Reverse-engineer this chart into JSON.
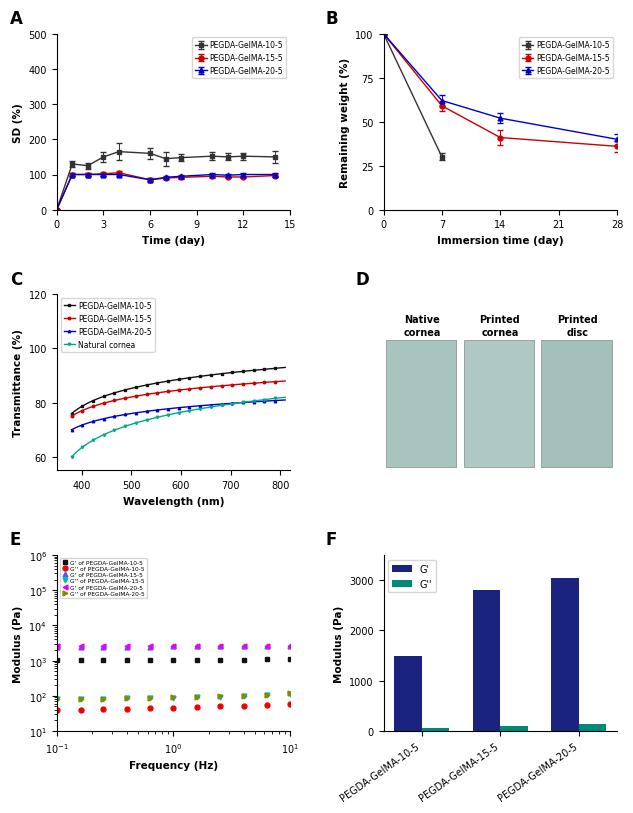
{
  "panel_A": {
    "xlabel": "Time (day)",
    "ylabel": "SD (%)",
    "xlim": [
      0,
      15
    ],
    "ylim": [
      0,
      500
    ],
    "yticks": [
      0,
      100,
      200,
      300,
      400,
      500
    ],
    "xticks": [
      0,
      3,
      6,
      9,
      12,
      15
    ],
    "series": [
      {
        "label": "PEGDA-GelMA-10-5",
        "color": "#333333",
        "marker": "s",
        "x": [
          0,
          1,
          2,
          3,
          4,
          6,
          7,
          8,
          10,
          11,
          12,
          14
        ],
        "y": [
          0,
          130,
          125,
          150,
          165,
          160,
          145,
          148,
          152,
          150,
          152,
          150
        ],
        "yerr": [
          0,
          8,
          8,
          15,
          25,
          15,
          20,
          10,
          12,
          10,
          10,
          18
        ]
      },
      {
        "label": "PEGDA-GelMA-15-5",
        "color": "#cc0000",
        "marker": "o",
        "x": [
          0,
          1,
          2,
          3,
          4,
          6,
          7,
          8,
          10,
          11,
          12,
          14
        ],
        "y": [
          0,
          100,
          100,
          102,
          105,
          85,
          90,
          92,
          95,
          93,
          93,
          97
        ],
        "yerr": [
          0,
          4,
          4,
          6,
          6,
          4,
          4,
          4,
          4,
          4,
          4,
          4
        ]
      },
      {
        "label": "PEGDA-GelMA-20-5",
        "color": "#0000cc",
        "marker": "^",
        "x": [
          0,
          1,
          2,
          3,
          4,
          6,
          7,
          8,
          10,
          11,
          12,
          14
        ],
        "y": [
          0,
          100,
          100,
          100,
          100,
          85,
          92,
          95,
          100,
          98,
          100,
          100
        ],
        "yerr": [
          0,
          4,
          4,
          4,
          4,
          4,
          4,
          4,
          4,
          4,
          4,
          4
        ]
      }
    ]
  },
  "panel_B": {
    "xlabel": "Immersion time (day)",
    "ylabel": "Remaining weight (%)",
    "xlim": [
      0,
      28
    ],
    "ylim": [
      0,
      100
    ],
    "yticks": [
      0,
      25,
      50,
      75,
      100
    ],
    "xticks": [
      0,
      7,
      14,
      21,
      28
    ],
    "series": [
      {
        "label": "PEGDA-GelMA-10-5",
        "color": "#333333",
        "marker": "s",
        "x": [
          0,
          7
        ],
        "y": [
          100,
          30
        ],
        "yerr": [
          0,
          2
        ]
      },
      {
        "label": "PEGDA-GelMA-15-5",
        "color": "#cc0000",
        "marker": "o",
        "x": [
          0,
          7,
          14,
          28
        ],
        "y": [
          100,
          59,
          41,
          36
        ],
        "yerr": [
          0,
          3,
          4,
          3
        ]
      },
      {
        "label": "PEGDA-GelMA-20-5",
        "color": "#0000cc",
        "marker": "^",
        "x": [
          0,
          7,
          14,
          28
        ],
        "y": [
          100,
          62,
          52,
          40
        ],
        "yerr": [
          0,
          3,
          3,
          3
        ]
      }
    ]
  },
  "panel_C": {
    "xlabel": "Wavelength (nm)",
    "ylabel": "Transmittance (%)",
    "xlim": [
      350,
      820
    ],
    "ylim": [
      55,
      120
    ],
    "yticks": [
      60,
      80,
      100,
      120
    ],
    "xticks": [
      400,
      500,
      600,
      700,
      800
    ],
    "series": [
      {
        "label": "PEGDA-GelMA-10-5",
        "color": "#111111",
        "marker": "s",
        "x_start": 380,
        "x_end": 810,
        "y_start": 76,
        "y_end": 93
      },
      {
        "label": "PEGDA-GelMA-15-5",
        "color": "#cc0000",
        "marker": "o",
        "x_start": 380,
        "x_end": 810,
        "y_start": 75,
        "y_end": 88
      },
      {
        "label": "PEGDA-GelMA-20-5",
        "color": "#0000cc",
        "marker": "^",
        "x_start": 380,
        "x_end": 810,
        "y_start": 70,
        "y_end": 81
      },
      {
        "label": "Natural cornea",
        "color": "#00aa88",
        "marker": "v",
        "x_start": 380,
        "x_end": 810,
        "y_start": 60,
        "y_end": 82
      }
    ]
  },
  "panel_D": {
    "labels": [
      "Native\ncornea",
      "Printed\ncornea",
      "Printed\ndisc"
    ],
    "bg_colors": [
      "#b8cfc8",
      "#b8cec8",
      "#b0c8c4"
    ],
    "panel_color": "#c8d8d4"
  },
  "panel_E": {
    "xlabel": "Frequency (Hz)",
    "ylabel": "Modulus (Pa)",
    "xlim": [
      0.1,
      10
    ],
    "ylim": [
      10,
      1000000
    ],
    "series": [
      {
        "label": "G' of PEGDA-GelMA-10-5",
        "color": "#111111",
        "marker": "s",
        "x": [
          0.1,
          0.16,
          0.25,
          0.4,
          0.63,
          1.0,
          1.6,
          2.5,
          4.0,
          6.3,
          10.0
        ],
        "y": [
          1050,
          1050,
          1050,
          1060,
          1060,
          1060,
          1065,
          1070,
          1075,
          1080,
          1090
        ]
      },
      {
        "label": "G'' of PEGDA-GelMA-10-5",
        "color": "#ee0000",
        "marker": "o",
        "x": [
          0.1,
          0.16,
          0.25,
          0.4,
          0.63,
          1.0,
          1.6,
          2.5,
          4.0,
          6.3,
          10.0
        ],
        "y": [
          40,
          40,
          42,
          43,
          44,
          46,
          48,
          50,
          52,
          55,
          60
        ]
      },
      {
        "label": "G' of PEGDA-GelMA-15-5",
        "color": "#5555ff",
        "marker": "^",
        "x": [
          0.1,
          0.16,
          0.25,
          0.4,
          0.63,
          1.0,
          1.6,
          2.5,
          4.0,
          6.3,
          10.0
        ],
        "y": [
          2500,
          2500,
          2510,
          2515,
          2520,
          2530,
          2540,
          2545,
          2550,
          2560,
          2570
        ]
      },
      {
        "label": "G'' of PEGDA-GelMA-15-5",
        "color": "#00bbaa",
        "marker": "v",
        "x": [
          0.1,
          0.16,
          0.25,
          0.4,
          0.63,
          1.0,
          1.6,
          2.5,
          4.0,
          6.3,
          10.0
        ],
        "y": [
          80,
          82,
          83,
          85,
          87,
          89,
          92,
          95,
          100,
          105,
          115
        ]
      },
      {
        "label": "G' of PEGDA-GelMA-20-5",
        "color": "#ee00ee",
        "marker": "<",
        "x": [
          0.1,
          0.16,
          0.25,
          0.4,
          0.63,
          1.0,
          1.6,
          2.5,
          4.0,
          6.3,
          10.0
        ],
        "y": [
          2600,
          2600,
          2605,
          2610,
          2615,
          2620,
          2625,
          2630,
          2640,
          2650,
          2660
        ]
      },
      {
        "label": "G'' of PEGDA-GelMA-20-5",
        "color": "#888800",
        "marker": ">",
        "x": [
          0.1,
          0.16,
          0.25,
          0.4,
          0.63,
          1.0,
          1.6,
          2.5,
          4.0,
          6.3,
          10.0
        ],
        "y": [
          80,
          82,
          84,
          86,
          88,
          90,
          93,
          96,
          100,
          108,
          118
        ]
      }
    ]
  },
  "panel_F": {
    "ylabel": "Modulus (Pa)",
    "ylim": [
      0,
      3500
    ],
    "yticks": [
      0,
      1000,
      2000,
      3000
    ],
    "categories": [
      "PEGDA-GelMA-10-5",
      "PEGDA-GelMA-15-5",
      "PEGDA-GelMA-20-5"
    ],
    "G_prime": [
      1500,
      2800,
      3050
    ],
    "G_double_prime": [
      70,
      100,
      150
    ],
    "color_Gprime": "#1a237e",
    "color_Gdoubleprime": "#00897b",
    "legend_Gprime": "G'",
    "legend_Gdp": "G''"
  }
}
